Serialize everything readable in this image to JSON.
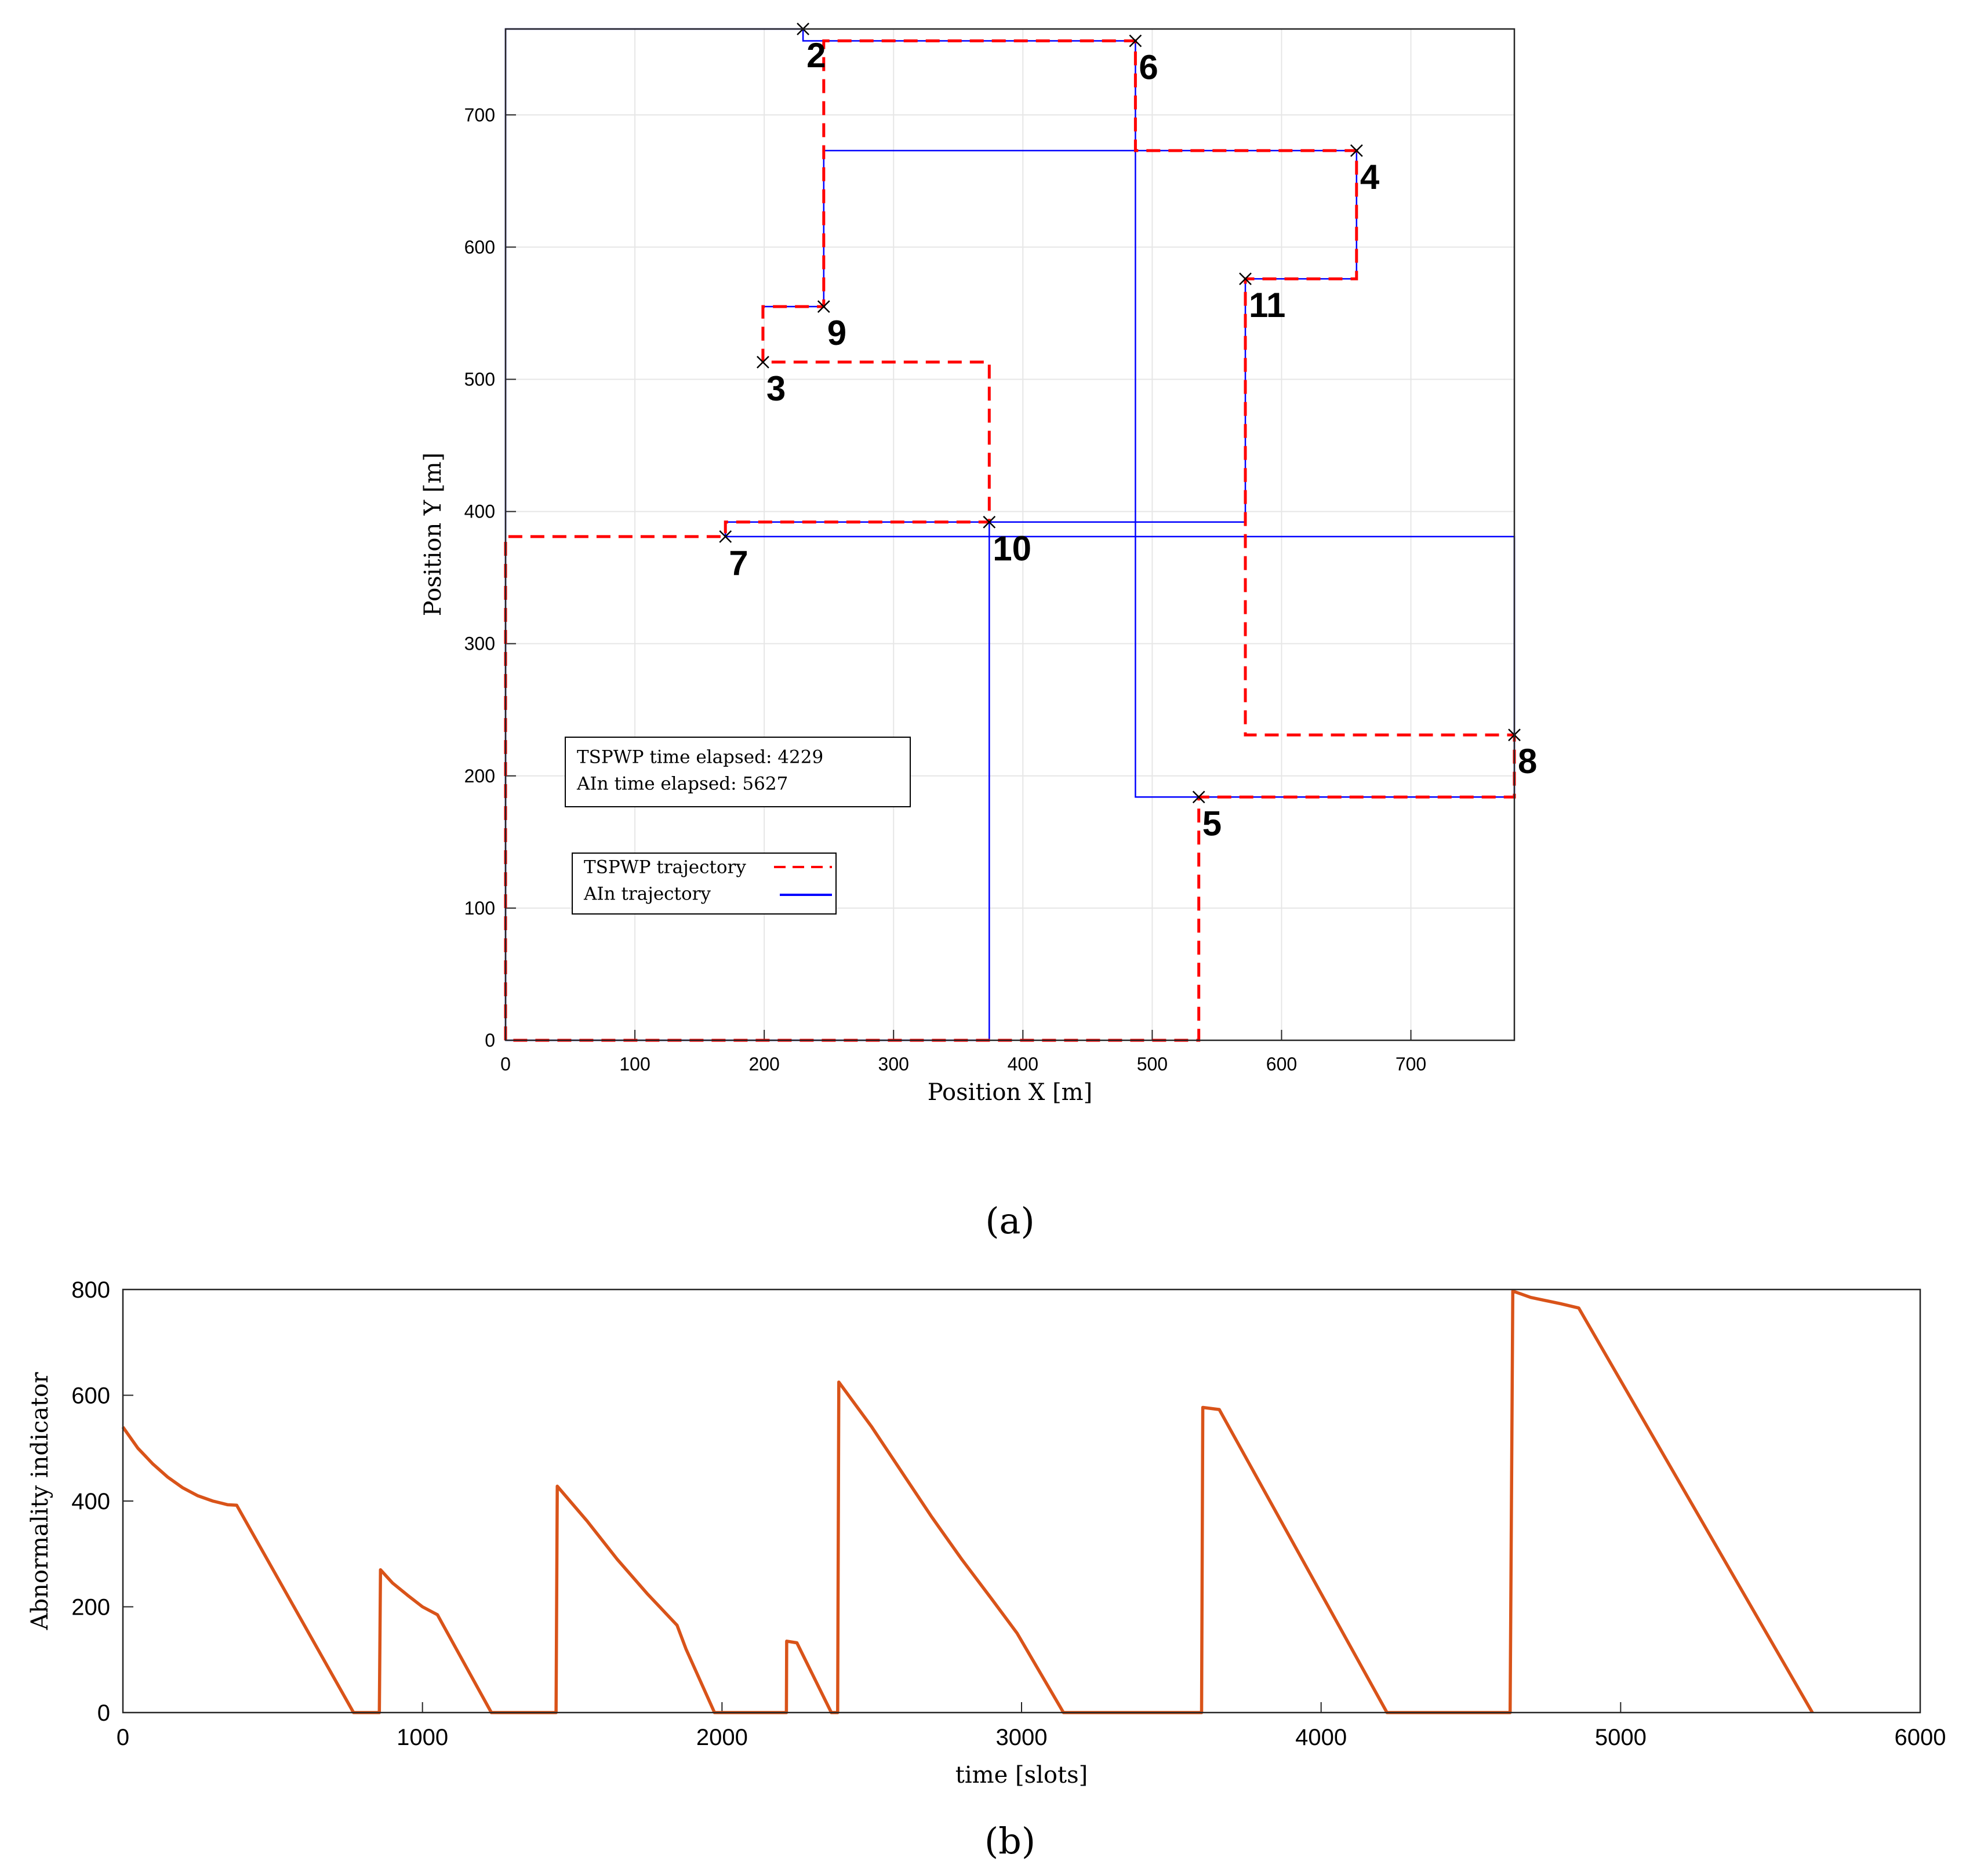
{
  "chart_data": [
    {
      "type": "line",
      "subplot_label": "(a)",
      "xlabel": "Position X [m]",
      "ylabel": "Position Y [m]",
      "xlim": [
        0,
        780
      ],
      "ylim": [
        0,
        765
      ],
      "xticks": [
        0,
        100,
        200,
        300,
        400,
        500,
        600,
        700
      ],
      "yticks": [
        0,
        100,
        200,
        300,
        400,
        500,
        600,
        700
      ],
      "grid": true,
      "points": [
        {
          "label": "2",
          "x": 230,
          "y": 765
        },
        {
          "label": "6",
          "x": 487,
          "y": 756
        },
        {
          "label": "4",
          "x": 658,
          "y": 673
        },
        {
          "label": "11",
          "x": 572,
          "y": 576
        },
        {
          "label": "9",
          "x": 246,
          "y": 555
        },
        {
          "label": "3",
          "x": 199,
          "y": 513
        },
        {
          "label": "10",
          "x": 374,
          "y": 392
        },
        {
          "label": "7",
          "x": 170,
          "y": 381
        },
        {
          "label": "8",
          "x": 780,
          "y": 231
        },
        {
          "label": "5",
          "x": 536,
          "y": 184
        }
      ],
      "series": [
        {
          "name": "TSPWP trajectory",
          "style": "dashed",
          "color": "#ff0000",
          "x": [
            0,
            0,
            170,
            170,
            374,
            374,
            199,
            199,
            199,
            246,
            246,
            246,
            487,
            487,
            658,
            658,
            572,
            572,
            780,
            780,
            536,
            536,
            0
          ],
          "y": [
            0,
            381,
            381,
            392,
            392,
            513,
            513,
            513,
            555,
            555,
            555,
            756,
            756,
            673,
            673,
            576,
            576,
            231,
            231,
            184,
            184,
            0,
            0
          ]
        },
        {
          "name": "AIn trajectory",
          "style": "solid",
          "color": "#0000ff",
          "x": [
            0,
            0,
            230,
            230,
            487,
            487,
            658,
            658,
            572,
            572,
            374,
            374,
            0,
            0,
            374,
            374,
            170,
            170,
            780,
            780,
            487,
            487,
            246,
            246,
            199,
            199,
            246,
            246
          ],
          "y": [
            0,
            765,
            765,
            756,
            756,
            673,
            673,
            576,
            576,
            392,
            392,
            0,
            0,
            0,
            0,
            392,
            392,
            381,
            381,
            184,
            184,
            673,
            673,
            555,
            555,
            555,
            555,
            555
          ]
        }
      ],
      "annotation": {
        "line1": "TSPWP time elapsed: 4229",
        "line2": "AIn time elapsed: 5627"
      },
      "legend": {
        "placement": "lower-left",
        "entries": [
          "TSPWP trajectory",
          "AIn trajectory"
        ]
      }
    },
    {
      "type": "line",
      "subplot_label": "(b)",
      "xlabel": "time [slots]",
      "ylabel": "Abnormality indicator",
      "xlim": [
        0,
        6000
      ],
      "ylim": [
        0,
        800
      ],
      "xticks": [
        0,
        1000,
        2000,
        3000,
        4000,
        5000,
        6000
      ],
      "yticks": [
        0,
        200,
        400,
        600,
        800
      ],
      "grid": false,
      "series": [
        {
          "color": "#d95319",
          "x": [
            0,
            50,
            100,
            150,
            200,
            250,
            300,
            350,
            380,
            770,
            855,
            856,
            860,
            900,
            950,
            1000,
            1050,
            1230,
            1445,
            1446,
            1450,
            1550,
            1650,
            1750,
            1850,
            1880,
            1975,
            2215,
            2216,
            2250,
            2365,
            2385,
            2386,
            2390,
            2500,
            2600,
            2700,
            2800,
            2900,
            2985,
            3140,
            3600,
            3601,
            3605,
            3660,
            4220,
            4630,
            4631,
            4640,
            4700,
            4800,
            4860,
            5640
          ],
          "y": [
            540,
            500,
            470,
            445,
            425,
            410,
            400,
            393,
            392,
            0,
            0,
            0,
            270,
            245,
            222,
            200,
            185,
            0,
            0,
            0,
            428,
            362,
            290,
            225,
            165,
            120,
            0,
            0,
            135,
            132,
            0,
            0,
            0,
            625,
            540,
            455,
            370,
            290,
            215,
            150,
            0,
            0,
            0,
            577,
            573,
            0,
            0,
            0,
            797,
            785,
            773,
            765,
            0
          ]
        }
      ]
    }
  ]
}
